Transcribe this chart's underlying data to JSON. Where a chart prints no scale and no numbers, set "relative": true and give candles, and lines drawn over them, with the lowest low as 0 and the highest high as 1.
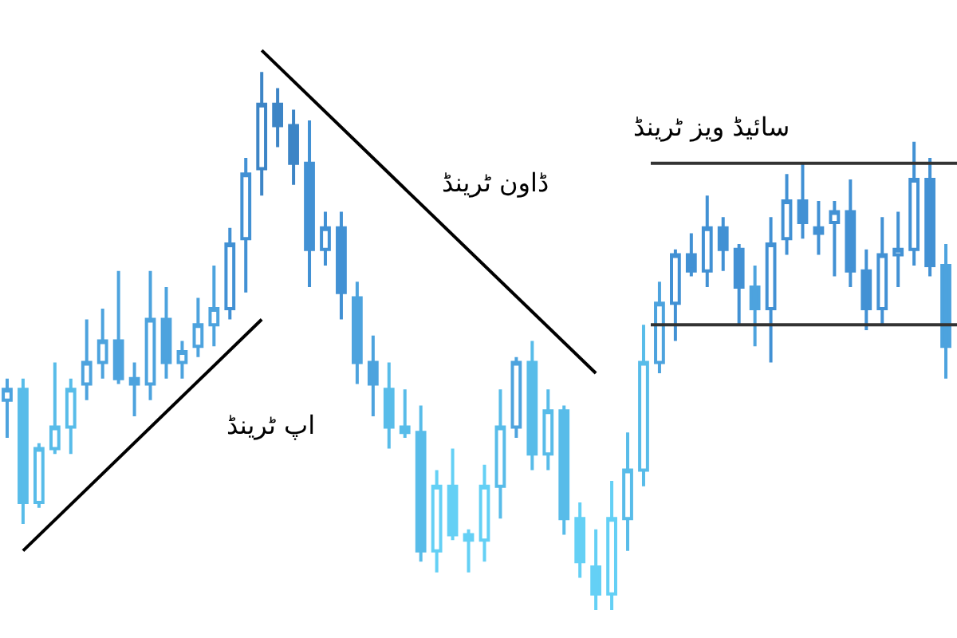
{
  "chart_data": {
    "type": "candlestick",
    "relative": true,
    "categories": [
      null,
      null,
      null,
      null,
      null,
      null,
      null,
      null,
      null,
      null,
      null,
      null,
      null,
      null,
      null,
      null,
      null,
      null,
      null,
      null,
      null,
      null,
      null,
      null,
      null,
      null,
      null,
      null,
      null,
      null,
      null,
      null,
      null,
      null,
      null,
      null,
      null,
      null,
      null,
      null,
      null,
      null,
      null,
      null,
      null,
      null,
      null,
      null,
      null,
      null,
      null,
      null,
      null,
      null,
      null,
      null,
      null,
      null,
      null,
      null
    ],
    "ohlc": [
      [
        0.39,
        0.43,
        0.32,
        0.41
      ],
      [
        0.41,
        0.43,
        0.16,
        0.2
      ],
      [
        0.2,
        0.31,
        0.19,
        0.3
      ],
      [
        0.3,
        0.46,
        0.29,
        0.34
      ],
      [
        0.34,
        0.43,
        0.29,
        0.41
      ],
      [
        0.42,
        0.54,
        0.39,
        0.46
      ],
      [
        0.46,
        0.56,
        0.43,
        0.5
      ],
      [
        0.5,
        0.63,
        0.42,
        0.43
      ],
      [
        0.43,
        0.46,
        0.36,
        0.42
      ],
      [
        0.42,
        0.63,
        0.39,
        0.54
      ],
      [
        0.54,
        0.6,
        0.43,
        0.46
      ],
      [
        0.46,
        0.5,
        0.43,
        0.48
      ],
      [
        0.49,
        0.58,
        0.47,
        0.53
      ],
      [
        0.53,
        0.64,
        0.49,
        0.56
      ],
      [
        0.56,
        0.71,
        0.54,
        0.68
      ],
      [
        0.69,
        0.84,
        0.59,
        0.81
      ],
      [
        0.82,
        1.0,
        0.77,
        0.94
      ],
      [
        0.94,
        0.97,
        0.86,
        0.9
      ],
      [
        0.9,
        0.93,
        0.79,
        0.83
      ],
      [
        0.83,
        0.91,
        0.6,
        0.67
      ],
      [
        0.67,
        0.74,
        0.64,
        0.71
      ],
      [
        0.71,
        0.74,
        0.54,
        0.59
      ],
      [
        0.58,
        0.61,
        0.42,
        0.46
      ],
      [
        0.46,
        0.51,
        0.36,
        0.42
      ],
      [
        0.41,
        0.46,
        0.3,
        0.34
      ],
      [
        0.34,
        0.41,
        0.32,
        0.33
      ],
      [
        0.33,
        0.38,
        0.09,
        0.11
      ],
      [
        0.11,
        0.26,
        0.07,
        0.23
      ],
      [
        0.23,
        0.3,
        0.13,
        0.14
      ],
      [
        0.14,
        0.15,
        0.07,
        0.13
      ],
      [
        0.13,
        0.27,
        0.09,
        0.23
      ],
      [
        0.23,
        0.41,
        0.17,
        0.34
      ],
      [
        0.34,
        0.47,
        0.32,
        0.46
      ],
      [
        0.46,
        0.5,
        0.26,
        0.29
      ],
      [
        0.29,
        0.41,
        0.26,
        0.37
      ],
      [
        0.37,
        0.38,
        0.14,
        0.17
      ],
      [
        0.17,
        0.2,
        0.06,
        0.09
      ],
      [
        0.08,
        0.15,
        0,
        0.03
      ],
      [
        0.03,
        0.24,
        0,
        0.17
      ],
      [
        0.17,
        0.33,
        0.11,
        0.26
      ],
      [
        0.26,
        0.53,
        0.23,
        0.46
      ],
      [
        0.46,
        0.61,
        0.44,
        0.57
      ],
      [
        0.57,
        0.67,
        0.5,
        0.66
      ],
      [
        0.66,
        0.7,
        0.62,
        0.63
      ],
      [
        0.63,
        0.77,
        0.6,
        0.71
      ],
      [
        0.71,
        0.73,
        0.63,
        0.67
      ],
      [
        0.67,
        0.68,
        0.53,
        0.6
      ],
      [
        0.6,
        0.64,
        0.49,
        0.56
      ],
      [
        0.56,
        0.73,
        0.46,
        0.68
      ],
      [
        0.69,
        0.81,
        0.66,
        0.76
      ],
      [
        0.76,
        0.83,
        0.69,
        0.72
      ],
      [
        0.71,
        0.76,
        0.66,
        0.7
      ],
      [
        0.72,
        0.76,
        0.62,
        0.74
      ],
      [
        0.74,
        0.8,
        0.6,
        0.63
      ],
      [
        0.63,
        0.67,
        0.52,
        0.56
      ],
      [
        0.56,
        0.73,
        0.53,
        0.66
      ],
      [
        0.66,
        0.74,
        0.6,
        0.67
      ],
      [
        0.67,
        0.87,
        0.64,
        0.8
      ],
      [
        0.8,
        0.84,
        0.62,
        0.64
      ],
      [
        0.64,
        0.68,
        0.43,
        0.49
      ]
    ],
    "colors": [
      "#4da3de",
      "#58bce9",
      "#58bce9",
      "#58bce9",
      "#58bce9",
      "#4da3de",
      "#4da3de",
      "#4da3de",
      "#4da3de",
      "#4da3de",
      "#4da3de",
      "#4da3de",
      "#4da3de",
      "#4da3de",
      "#4291d4",
      "#4291d4",
      "#3d85c6",
      "#3d85c6",
      "#3d85c6",
      "#4291d4",
      "#4291d4",
      "#4291d4",
      "#4da3de",
      "#4da3de",
      "#58bce9",
      "#58bce9",
      "#58bce9",
      "#64d0f5",
      "#64d0f5",
      "#64d0f5",
      "#64d0f5",
      "#58bce9",
      "#4da3de",
      "#58bce9",
      "#58bce9",
      "#58bce9",
      "#64d0f5",
      "#64d0f5",
      "#64d0f5",
      "#58bce9",
      "#58bce9",
      "#4da3de",
      "#4291d4",
      "#4291d4",
      "#4291d4",
      "#4291d4",
      "#4291d4",
      "#4da3de",
      "#4291d4",
      "#4291d4",
      "#4291d4",
      "#4291d4",
      "#4291d4",
      "#4291d4",
      "#4291d4",
      "#4291d4",
      "#4291d4",
      "#4291d4",
      "#4291d4",
      "#4da3de"
    ],
    "series": [
      {
        "type": "line",
        "color": "#000000",
        "values": [
          null,
          0.11,
          null,
          null,
          null,
          null,
          null,
          null,
          null,
          null,
          null,
          null,
          null,
          null,
          null,
          null,
          0.54,
          null,
          null,
          null,
          null,
          null,
          null,
          null,
          null,
          null,
          null,
          null,
          null,
          null,
          null,
          null,
          null,
          null,
          null,
          null,
          null,
          null,
          null,
          null,
          null,
          null,
          null,
          null,
          null,
          null,
          null,
          null,
          null,
          null,
          null,
          null,
          null,
          null,
          null,
          null,
          null,
          null,
          null,
          null
        ]
      },
      {
        "type": "line",
        "color": "#000000",
        "values": [
          null,
          null,
          null,
          null,
          null,
          null,
          null,
          null,
          null,
          null,
          null,
          null,
          null,
          null,
          null,
          null,
          1.04,
          null,
          null,
          null,
          null,
          null,
          null,
          null,
          null,
          null,
          null,
          null,
          null,
          null,
          null,
          null,
          null,
          null,
          null,
          null,
          null,
          0.44,
          null,
          null,
          null,
          null,
          null,
          null,
          null,
          null,
          null,
          null,
          null,
          null,
          null,
          null,
          null,
          null,
          null,
          null,
          null,
          null,
          null,
          null
        ]
      }
    ],
    "ref_lines": [
      {
        "axis": "y",
        "value": 0.83,
        "color": "#333333"
      },
      {
        "axis": "y",
        "value": 0.53,
        "color": "#333333"
      }
    ],
    "annotations": [
      "اپ ٹرینڈ",
      "ڈاون ٹرینڈ",
      "سائیڈ ویز ٹرینڈ"
    ],
    "grid": false
  }
}
